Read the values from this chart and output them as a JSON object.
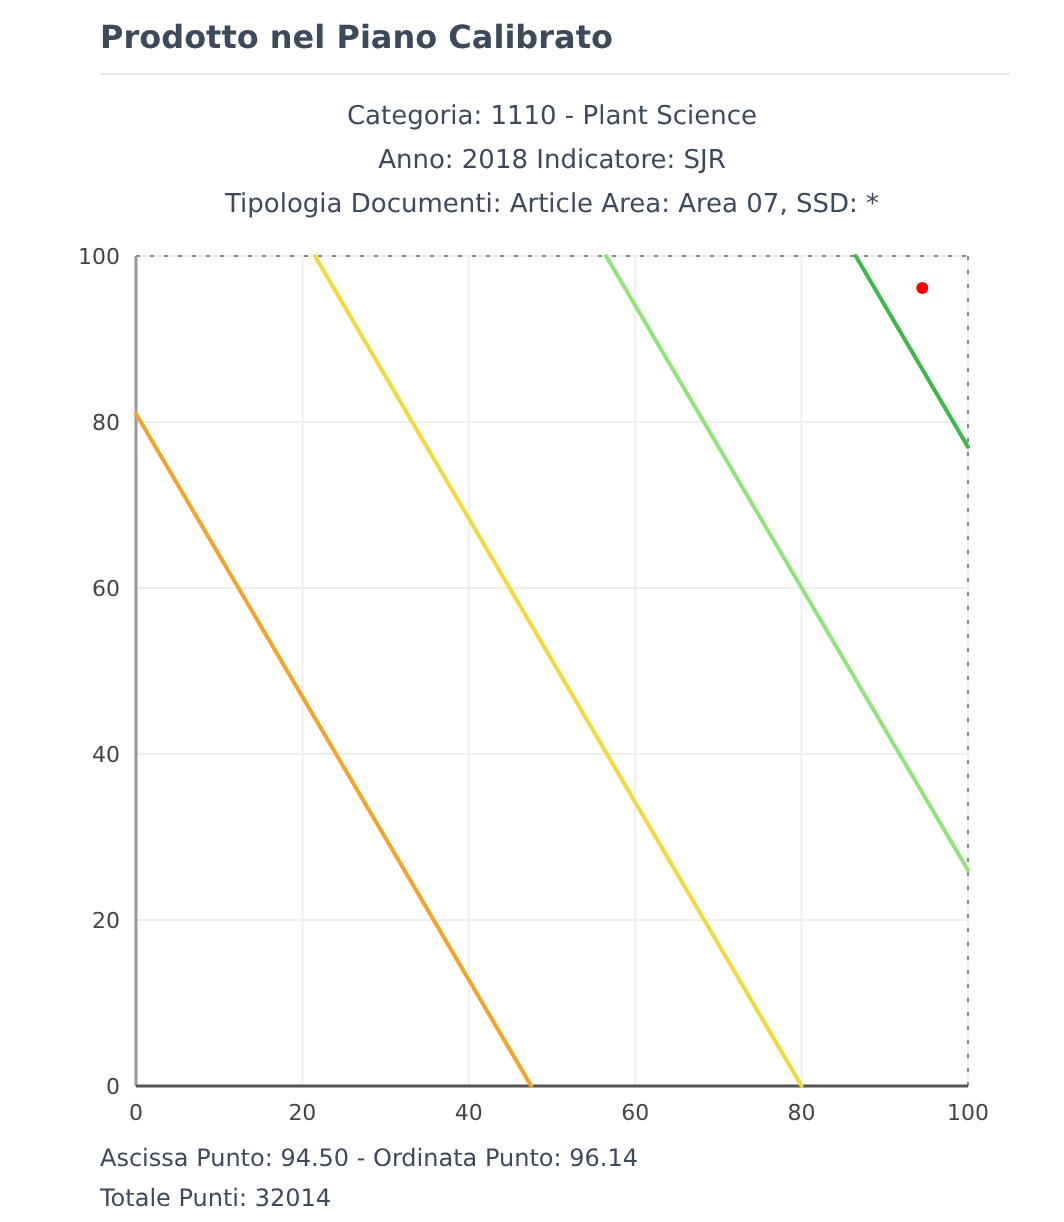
{
  "chart_data": {
    "type": "line",
    "title": "Prodotto nel Piano Calibrato",
    "subtitle": "Categoria: 1110 - Plant Science\nAnno: 2018 Indicatore: SJR\nTipologia Documenti: Article Area: Area 07, SSD: *",
    "xlim": [
      0,
      100
    ],
    "xticks": [
      0,
      20,
      40,
      60,
      80,
      100
    ],
    "ylim": [
      0,
      100
    ],
    "yticks": [
      0,
      20,
      40,
      60,
      80,
      100
    ],
    "grid": true,
    "marker": "none",
    "line_style": "solid",
    "series": [
      {
        "color": "#f5a42a",
        "x": [
          0,
          47.5
        ],
        "values": [
          81,
          0
        ]
      },
      {
        "color": "#f2da3c",
        "x": [
          21.5,
          80
        ],
        "values": [
          100,
          0
        ]
      },
      {
        "color": "#90e47a",
        "x": [
          56.5,
          100
        ],
        "values": [
          100,
          26
        ]
      },
      {
        "color": "#3db84a",
        "x": [
          86.5,
          100
        ],
        "values": [
          100,
          77
        ]
      },
      {
        "type": "scatter",
        "color": "#ff0000",
        "marker": "circle",
        "x": [
          94.5
        ],
        "values": [
          96.14
        ]
      }
    ],
    "annotations": [
      "Ascissa Punto: 94.50 - Ordinata Punto: 96.14",
      "Totale Punti: 32014"
    ]
  }
}
